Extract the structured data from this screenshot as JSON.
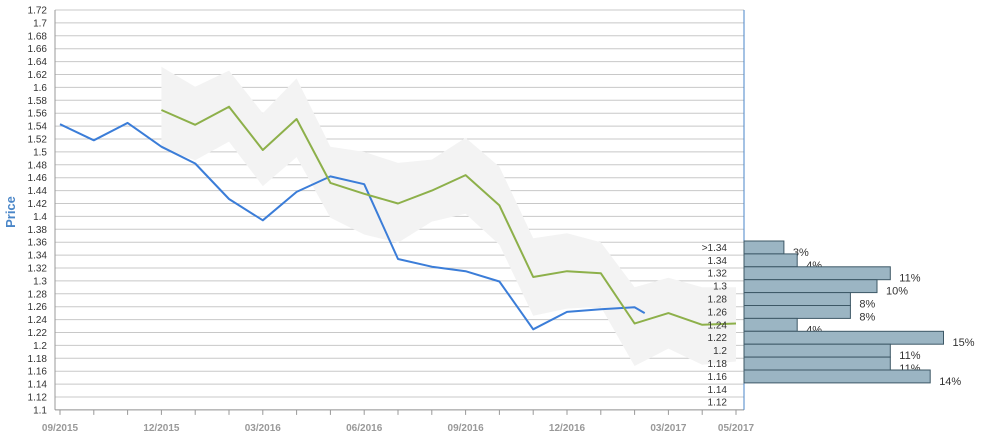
{
  "chart_data": {
    "type": "line",
    "ylabel": "Price",
    "ylim": [
      1.1,
      1.72
    ],
    "yticks": [
      "1.1",
      "1.12",
      "1.14",
      "1.16",
      "1.18",
      "1.2",
      "1.22",
      "1.24",
      "1.26",
      "1.28",
      "1.3",
      "1.32",
      "1.34",
      "1.36",
      "1.38",
      "1.4",
      "1.42",
      "1.44",
      "1.46",
      "1.48",
      "1.5",
      "1.52",
      "1.54",
      "1.56",
      "1.58",
      "1.6",
      "1.62",
      "1.64",
      "1.66",
      "1.68",
      "1.7",
      "1.72"
    ],
    "xticks": [
      "09/2015",
      "12/2015",
      "03/2016",
      "06/2016",
      "09/2016",
      "12/2016",
      "03/2017",
      "05/2017"
    ],
    "grid": true,
    "series": [
      {
        "color": "#3b7dd8",
        "points": [
          [
            "09/2015",
            1.543
          ],
          [
            "10/2015",
            1.518
          ],
          [
            "11/2015",
            1.545
          ],
          [
            "12/2015",
            1.508
          ],
          [
            "01/2016",
            1.482
          ],
          [
            "02/2016",
            1.427
          ],
          [
            "03/2016",
            1.394
          ],
          [
            "04/2016",
            1.438
          ],
          [
            "05/2016",
            1.462
          ],
          [
            "06/2016",
            1.45
          ],
          [
            "07/2016",
            1.334
          ],
          [
            "08/2016",
            1.322
          ],
          [
            "09/2016",
            1.315
          ],
          [
            "10/2016",
            1.299
          ],
          [
            "11/2016",
            1.225
          ],
          [
            "12/2016",
            1.252
          ],
          [
            "01/2017",
            1.256
          ],
          [
            "02/2017",
            1.259
          ],
          [
            "02/2017+",
            1.25
          ]
        ]
      },
      {
        "color": "#8db04a",
        "points": [
          [
            "12/2015",
            1.565
          ],
          [
            "01/2016",
            1.542
          ],
          [
            "02/2016",
            1.57
          ],
          [
            "03/2016",
            1.503
          ],
          [
            "04/2016",
            1.551
          ],
          [
            "05/2016",
            1.452
          ],
          [
            "06/2016",
            1.435
          ],
          [
            "07/2016",
            1.42
          ],
          [
            "08/2016",
            1.44
          ],
          [
            "09/2016",
            1.464
          ],
          [
            "10/2016",
            1.417
          ],
          [
            "11/2016",
            1.306
          ],
          [
            "12/2016",
            1.315
          ],
          [
            "01/2017",
            1.312
          ],
          [
            "02/2017",
            1.234
          ],
          [
            "03/2017",
            1.25
          ],
          [
            "04/2017",
            1.232
          ],
          [
            "05/2017",
            1.234
          ]
        ]
      }
    ],
    "band": {
      "color": "#f3f3f3",
      "upper": [
        1.632,
        1.601,
        1.626,
        1.56,
        1.614,
        1.508,
        1.5,
        1.483,
        1.488,
        1.522,
        1.477,
        1.366,
        1.374,
        1.36,
        1.29,
        1.305,
        1.29,
        1.29
      ],
      "lower": [
        1.505,
        1.487,
        1.516,
        1.447,
        1.492,
        1.398,
        1.372,
        1.359,
        1.392,
        1.404,
        1.356,
        1.246,
        1.257,
        1.26,
        1.168,
        1.195,
        1.17,
        1.175
      ]
    },
    "distribution": {
      "color": "#9bb5c3",
      "bars": [
        {
          "label": ">1.34",
          "pct": 3,
          "pct_label": "3%"
        },
        {
          "label": "1.34",
          "pct": 4,
          "pct_label": "4%"
        },
        {
          "label": "1.32",
          "pct": 11,
          "pct_label": "11%"
        },
        {
          "label": "1.3",
          "pct": 10,
          "pct_label": "10%"
        },
        {
          "label": "1.28",
          "pct": 8,
          "pct_label": "8%"
        },
        {
          "label": "1.26",
          "pct": 8,
          "pct_label": "8%"
        },
        {
          "label": "1.24",
          "pct": 4,
          "pct_label": "4%"
        },
        {
          "label": "1.22",
          "pct": 15,
          "pct_label": "15%"
        },
        {
          "label": "1.2",
          "pct": 11,
          "pct_label": "11%"
        },
        {
          "label": "1.18",
          "pct": 11,
          "pct_label": "11%"
        },
        {
          "label": "1.16",
          "pct": 14,
          "pct_label": "14%"
        },
        {
          "label": "1.14",
          "pct": null,
          "pct_label": ""
        },
        {
          "label": "1.12",
          "pct": null,
          "pct_label": ""
        }
      ]
    }
  }
}
